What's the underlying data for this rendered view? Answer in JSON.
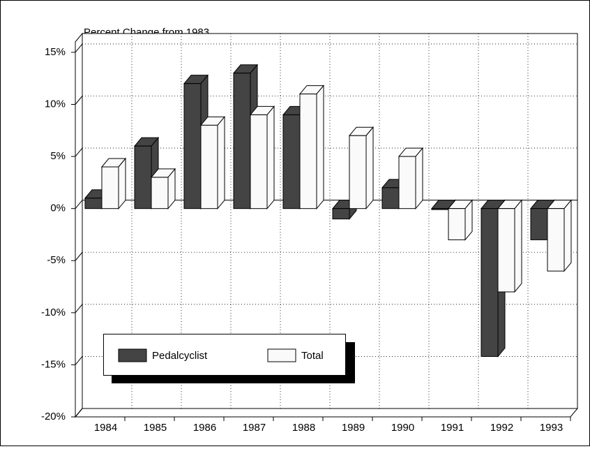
{
  "chart_data": {
    "type": "bar3d",
    "title": "Percent Change from 1983",
    "categories": [
      "1984",
      "1985",
      "1986",
      "1987",
      "1988",
      "1989",
      "1990",
      "1991",
      "1992",
      "1993"
    ],
    "series": [
      {
        "name": "Pedalcyclist",
        "color": "#444444",
        "values": [
          1,
          6,
          12,
          13,
          9,
          -1,
          2,
          -0.1,
          -14.2,
          -3
        ]
      },
      {
        "name": "Total",
        "color": "#fafafa",
        "values": [
          4,
          3,
          8,
          9,
          11,
          7,
          5,
          -3,
          -8,
          -6
        ]
      }
    ],
    "ylim": [
      -20,
      16
    ],
    "yticks": [
      {
        "value": -20,
        "label": "-20%"
      },
      {
        "value": -15,
        "label": "-15%"
      },
      {
        "value": -10,
        "label": "-10%"
      },
      {
        "value": -5,
        "label": "-5%"
      },
      {
        "value": 0,
        "label": "0%"
      },
      {
        "value": 5,
        "label": "5%"
      },
      {
        "value": 10,
        "label": "10%"
      },
      {
        "value": 15,
        "label": "15%"
      }
    ],
    "grid": true
  }
}
